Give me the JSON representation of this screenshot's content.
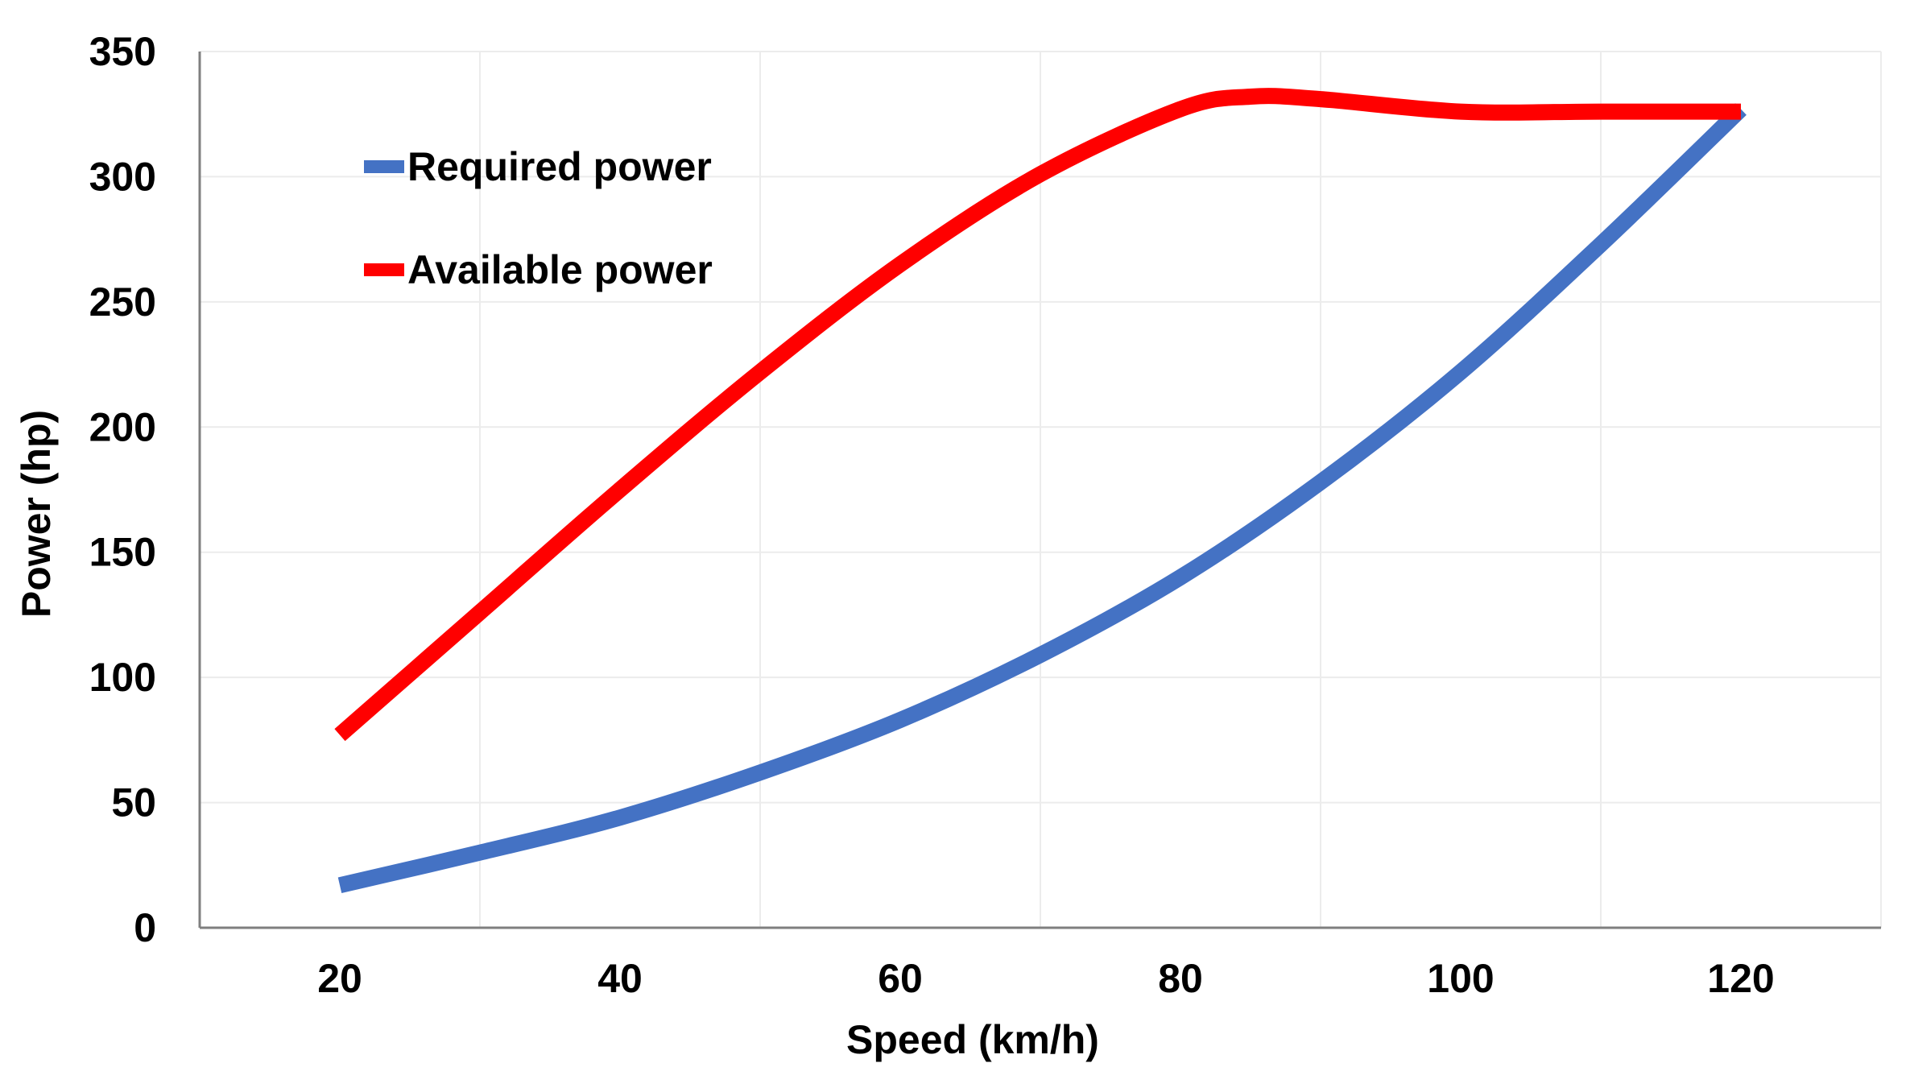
{
  "chart_data": {
    "type": "line",
    "title": "",
    "xlabel": "Speed (km/h)",
    "ylabel": "Power (hp)",
    "xlim": [
      10,
      130
    ],
    "ylim": [
      0,
      350
    ],
    "xticks": [
      20,
      40,
      60,
      80,
      100,
      120
    ],
    "yticks": [
      0,
      50,
      100,
      150,
      200,
      250,
      300,
      350
    ],
    "x_gridlines": [
      30,
      50,
      70,
      90,
      110,
      130
    ],
    "y_gridlines": [
      50,
      100,
      150,
      200,
      250,
      300,
      350
    ],
    "grid": true,
    "legend_position": "top-left",
    "series": [
      {
        "name": "Required power",
        "color": "#4472c4",
        "x": [
          20,
          30,
          40,
          50,
          60,
          70,
          80,
          90,
          100,
          110,
          120
        ],
        "y": [
          17,
          30,
          44,
          62,
          83,
          109,
          140,
          178,
          222,
          273,
          327
        ]
      },
      {
        "name": "Available power",
        "color": "#ff0000",
        "x": [
          20,
          30,
          40,
          50,
          60,
          70,
          80,
          85,
          90,
          100,
          110,
          120
        ],
        "y": [
          77,
          126,
          175,
          222,
          265,
          301,
          327,
          332,
          331,
          326,
          326,
          326
        ]
      }
    ]
  }
}
